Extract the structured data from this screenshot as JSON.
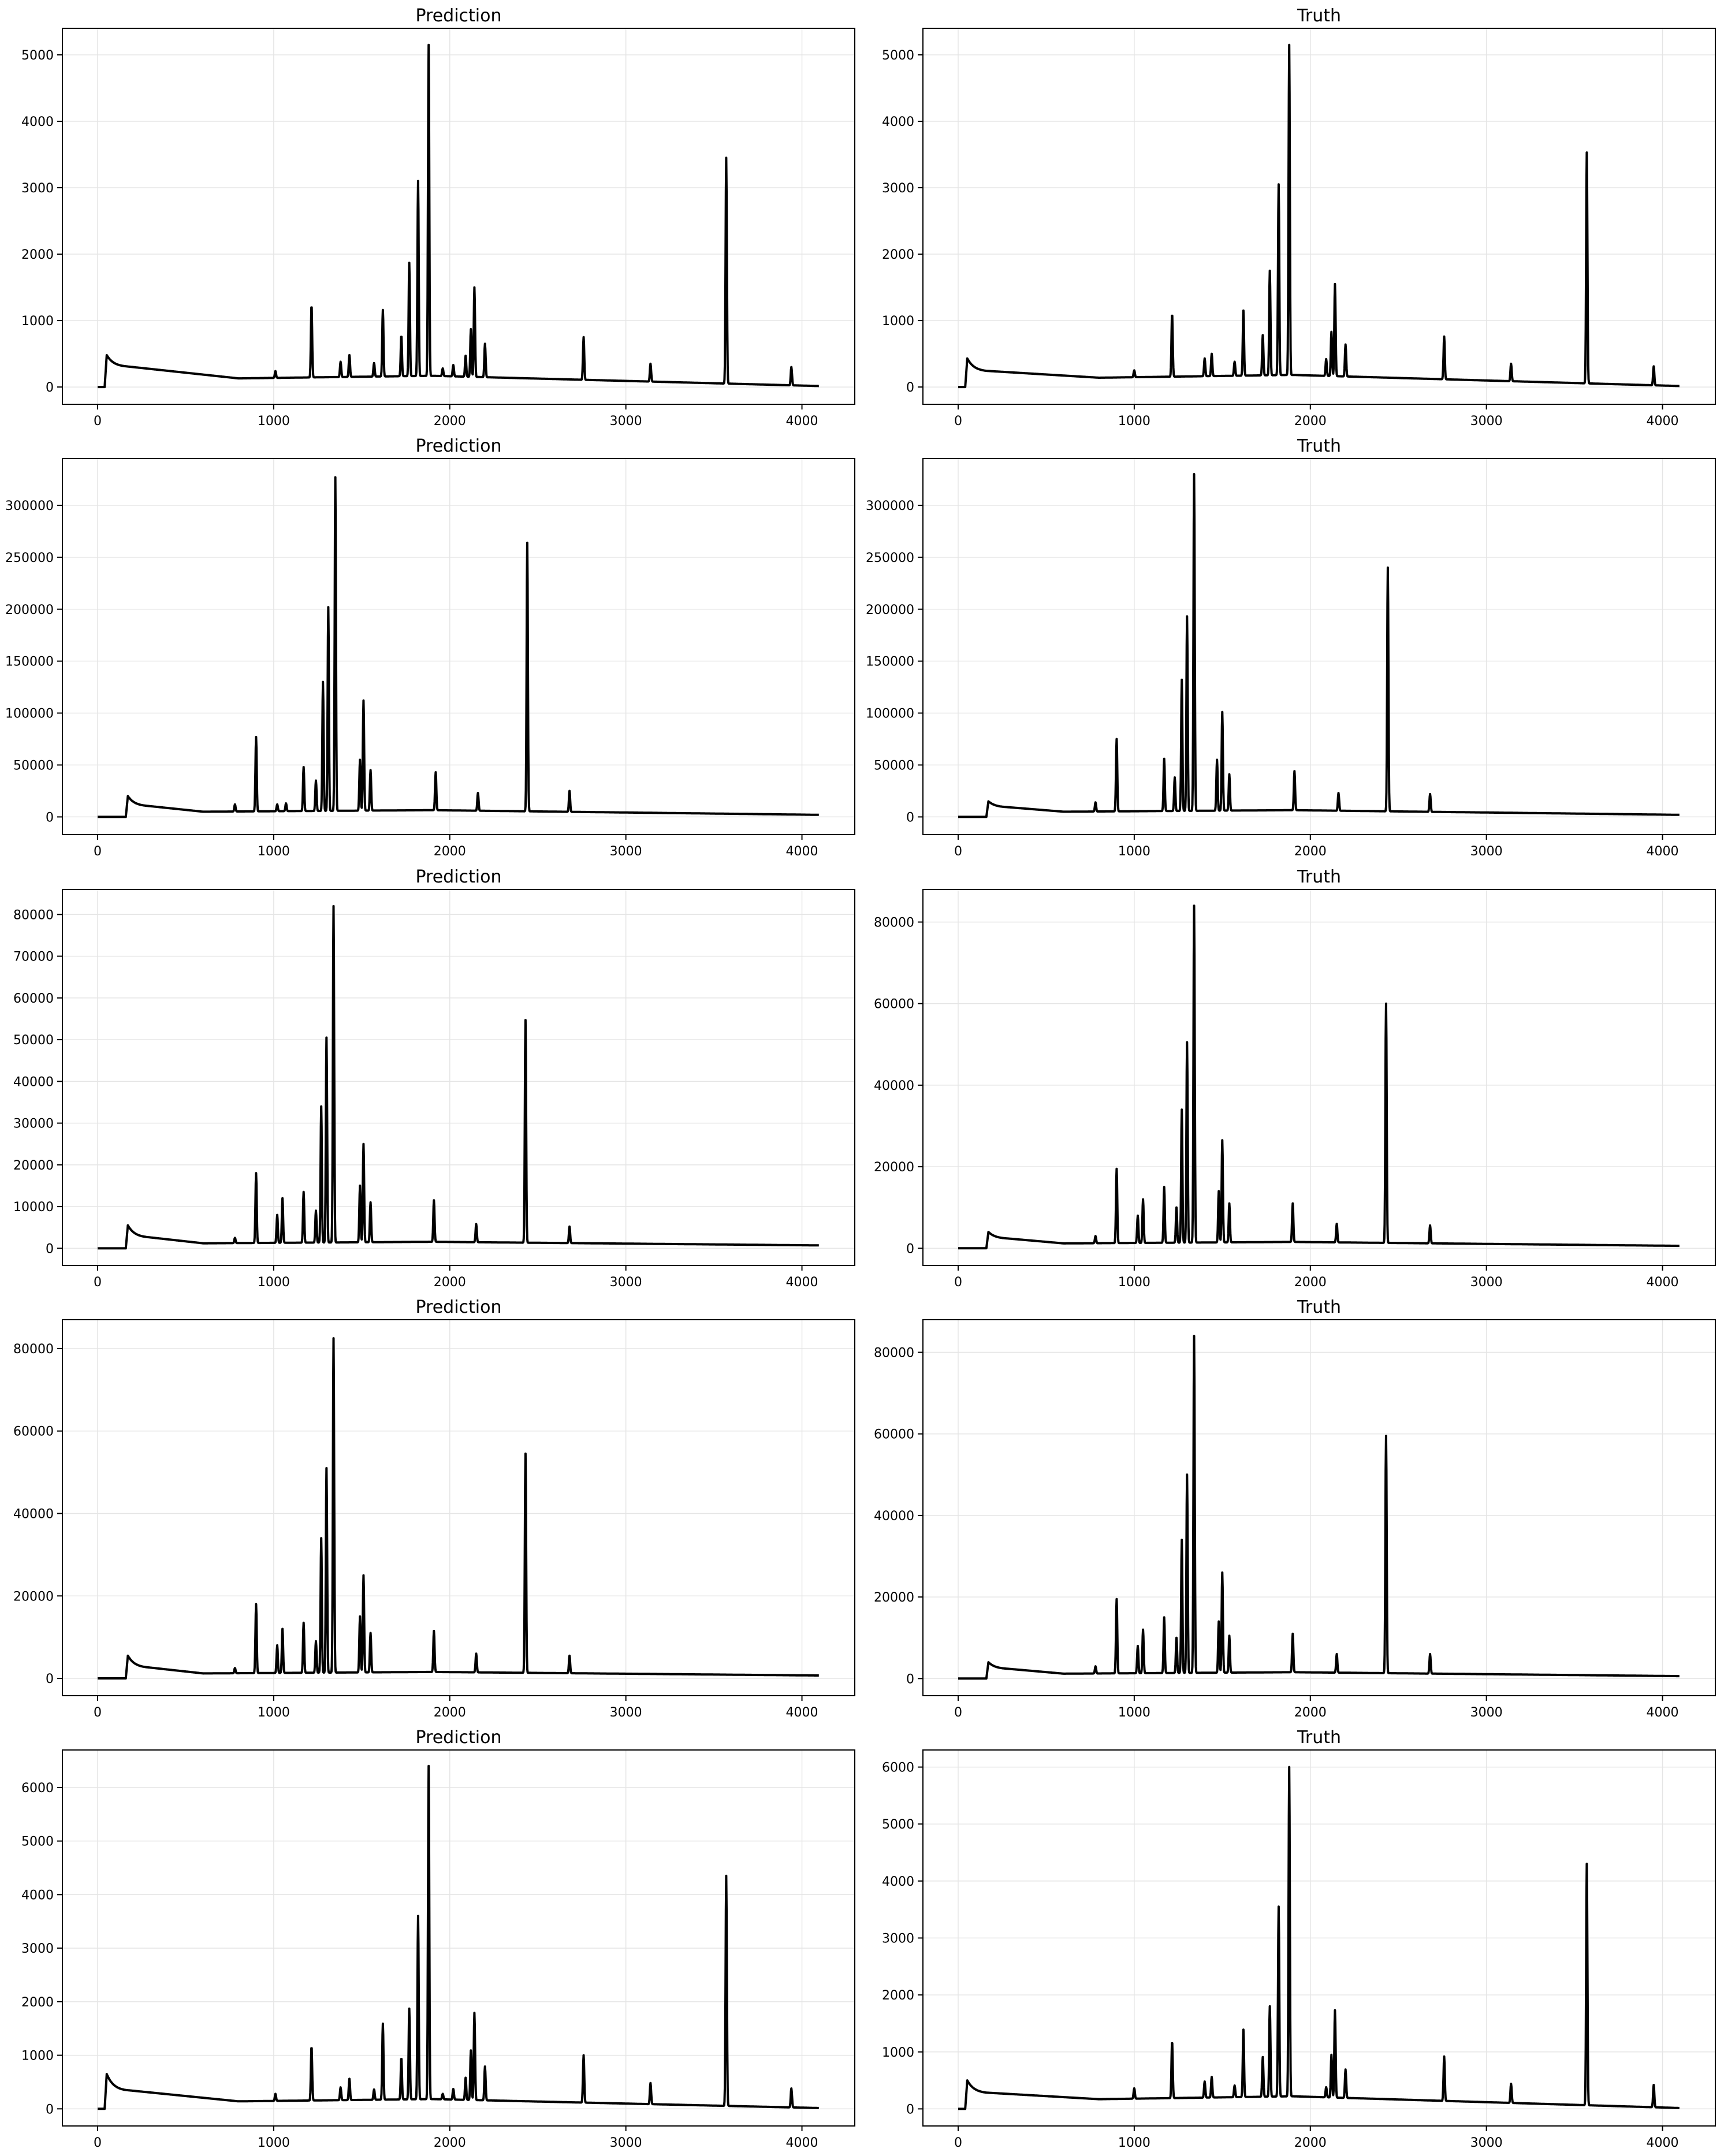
{
  "figure": {
    "layout": "5 rows x 2 columns",
    "background": "#ffffff",
    "line_color": "#000000",
    "grid_color": "#e5e5e5"
  },
  "chart_data": [
    {
      "type": "line",
      "title": "Prediction",
      "xlabel": "",
      "ylabel": "",
      "grid": true,
      "xlim": [
        -200,
        4300
      ],
      "ylim": [
        -260,
        5400
      ],
      "xticks": [
        0,
        1000,
        2000,
        3000,
        4000
      ],
      "yticks": [
        0,
        1000,
        2000,
        3000,
        4000,
        5000
      ],
      "baseline": {
        "start_x": 40,
        "end_x": 4096,
        "onset": 480,
        "plateau": 300,
        "min": 130,
        "min_x": 800,
        "tail": 15
      },
      "peaks": [
        [
          1010,
          240
        ],
        [
          1215,
          1240
        ],
        [
          1380,
          380
        ],
        [
          1430,
          480
        ],
        [
          1570,
          360
        ],
        [
          1620,
          1160
        ],
        [
          1725,
          780
        ],
        [
          1770,
          1870
        ],
        [
          1820,
          3100
        ],
        [
          1880,
          5150
        ],
        [
          1960,
          280
        ],
        [
          2020,
          330
        ],
        [
          2090,
          470
        ],
        [
          2120,
          870
        ],
        [
          2140,
          1500
        ],
        [
          2200,
          650
        ],
        [
          2760,
          750
        ],
        [
          3140,
          350
        ],
        [
          3570,
          3450
        ],
        [
          3940,
          300
        ]
      ]
    },
    {
      "type": "line",
      "title": "Truth",
      "xlabel": "",
      "ylabel": "",
      "grid": true,
      "xlim": [
        -200,
        4300
      ],
      "ylim": [
        -260,
        5400
      ],
      "xticks": [
        0,
        1000,
        2000,
        3000,
        4000
      ],
      "yticks": [
        0,
        1000,
        2000,
        3000,
        4000,
        5000
      ],
      "baseline": {
        "start_x": 40,
        "end_x": 4096,
        "onset": 430,
        "plateau": 230,
        "min": 140,
        "min_x": 800,
        "tail": 15
      },
      "peaks": [
        [
          1000,
          250
        ],
        [
          1215,
          1110
        ],
        [
          1400,
          430
        ],
        [
          1440,
          500
        ],
        [
          1570,
          380
        ],
        [
          1620,
          1150
        ],
        [
          1730,
          780
        ],
        [
          1770,
          1750
        ],
        [
          1820,
          3050
        ],
        [
          1880,
          5150
        ],
        [
          2090,
          420
        ],
        [
          2120,
          830
        ],
        [
          2140,
          1550
        ],
        [
          2200,
          640
        ],
        [
          2760,
          760
        ],
        [
          3140,
          350
        ],
        [
          3570,
          3530
        ],
        [
          3950,
          310
        ]
      ]
    },
    {
      "type": "line",
      "title": "Prediction",
      "xlabel": "",
      "ylabel": "",
      "grid": true,
      "xlim": [
        -200,
        4300
      ],
      "ylim": [
        -17000,
        345000
      ],
      "xticks": [
        0,
        1000,
        2000,
        3000,
        4000
      ],
      "yticks": [
        0,
        50000,
        100000,
        150000,
        200000,
        250000,
        300000
      ],
      "baseline": {
        "start_x": 160,
        "end_x": 4096,
        "onset": 20000,
        "plateau": 10000,
        "min": 5000,
        "min_x": 600,
        "tail": 2000
      },
      "peaks": [
        [
          780,
          12000
        ],
        [
          900,
          77000
        ],
        [
          1020,
          12000
        ],
        [
          1070,
          13000
        ],
        [
          1170,
          48000
        ],
        [
          1240,
          35000
        ],
        [
          1280,
          130000
        ],
        [
          1310,
          202000
        ],
        [
          1350,
          327000
        ],
        [
          1490,
          55000
        ],
        [
          1510,
          112000
        ],
        [
          1550,
          45000
        ],
        [
          1920,
          43000
        ],
        [
          2160,
          23000
        ],
        [
          2440,
          264000
        ],
        [
          2680,
          25000
        ]
      ]
    },
    {
      "type": "line",
      "title": "Truth",
      "xlabel": "",
      "ylabel": "",
      "grid": true,
      "xlim": [
        -200,
        4300
      ],
      "ylim": [
        -17000,
        345000
      ],
      "xticks": [
        0,
        1000,
        2000,
        3000,
        4000
      ],
      "yticks": [
        0,
        50000,
        100000,
        150000,
        200000,
        250000,
        300000
      ],
      "baseline": {
        "start_x": 160,
        "end_x": 4096,
        "onset": 15000,
        "plateau": 9000,
        "min": 5000,
        "min_x": 600,
        "tail": 2000
      },
      "peaks": [
        [
          780,
          14000
        ],
        [
          900,
          75000
        ],
        [
          1170,
          56000
        ],
        [
          1230,
          38000
        ],
        [
          1270,
          132000
        ],
        [
          1300,
          193000
        ],
        [
          1340,
          330000
        ],
        [
          1470,
          55000
        ],
        [
          1500,
          101000
        ],
        [
          1540,
          41000
        ],
        [
          1910,
          44000
        ],
        [
          2160,
          23000
        ],
        [
          2440,
          240000
        ],
        [
          2680,
          22000
        ]
      ]
    },
    {
      "type": "line",
      "title": "Prediction",
      "xlabel": "",
      "ylabel": "",
      "grid": true,
      "xlim": [
        -200,
        4300
      ],
      "ylim": [
        -4100,
        86000
      ],
      "xticks": [
        0,
        1000,
        2000,
        3000,
        4000
      ],
      "yticks": [
        0,
        10000,
        20000,
        30000,
        40000,
        50000,
        60000,
        70000,
        80000
      ],
      "baseline": {
        "start_x": 160,
        "end_x": 4096,
        "onset": 5500,
        "plateau": 2500,
        "min": 1200,
        "min_x": 600,
        "tail": 700
      },
      "peaks": [
        [
          780,
          2500
        ],
        [
          900,
          18000
        ],
        [
          1020,
          8000
        ],
        [
          1050,
          12000
        ],
        [
          1170,
          13500
        ],
        [
          1240,
          9000
        ],
        [
          1270,
          34000
        ],
        [
          1300,
          50500
        ],
        [
          1340,
          82000
        ],
        [
          1490,
          15000
        ],
        [
          1510,
          25000
        ],
        [
          1550,
          11000
        ],
        [
          1910,
          11500
        ],
        [
          2150,
          5800
        ],
        [
          2430,
          54700
        ],
        [
          2680,
          5200
        ]
      ]
    },
    {
      "type": "line",
      "title": "Truth",
      "xlabel": "",
      "ylabel": "",
      "grid": true,
      "xlim": [
        -200,
        4300
      ],
      "ylim": [
        -4200,
        88000
      ],
      "xticks": [
        0,
        1000,
        2000,
        3000,
        4000
      ],
      "yticks": [
        0,
        20000,
        40000,
        60000,
        80000
      ],
      "baseline": {
        "start_x": 160,
        "end_x": 4096,
        "onset": 4000,
        "plateau": 2300,
        "min": 1200,
        "min_x": 600,
        "tail": 600
      },
      "peaks": [
        [
          780,
          3000
        ],
        [
          900,
          19500
        ],
        [
          1020,
          8000
        ],
        [
          1050,
          12000
        ],
        [
          1170,
          15000
        ],
        [
          1240,
          10000
        ],
        [
          1270,
          34000
        ],
        [
          1300,
          50500
        ],
        [
          1340,
          84000
        ],
        [
          1480,
          14000
        ],
        [
          1500,
          26500
        ],
        [
          1540,
          11000
        ],
        [
          1900,
          11000
        ],
        [
          2150,
          6000
        ],
        [
          2430,
          60000
        ],
        [
          2680,
          5600
        ]
      ]
    },
    {
      "type": "line",
      "title": "Prediction",
      "xlabel": "",
      "ylabel": "",
      "grid": true,
      "xlim": [
        -200,
        4300
      ],
      "ylim": [
        -4200,
        87000
      ],
      "xticks": [
        0,
        1000,
        2000,
        3000,
        4000
      ],
      "yticks": [
        0,
        20000,
        40000,
        60000,
        80000
      ],
      "baseline": {
        "start_x": 160,
        "end_x": 4096,
        "onset": 5500,
        "plateau": 2500,
        "min": 1200,
        "min_x": 600,
        "tail": 700
      },
      "peaks": [
        [
          780,
          2500
        ],
        [
          900,
          18000
        ],
        [
          1020,
          8000
        ],
        [
          1050,
          12000
        ],
        [
          1170,
          13500
        ],
        [
          1240,
          9000
        ],
        [
          1270,
          34000
        ],
        [
          1300,
          51000
        ],
        [
          1340,
          82500
        ],
        [
          1490,
          15000
        ],
        [
          1510,
          25000
        ],
        [
          1550,
          11000
        ],
        [
          1910,
          11500
        ],
        [
          2150,
          6000
        ],
        [
          2430,
          54500
        ],
        [
          2680,
          5500
        ]
      ]
    },
    {
      "type": "line",
      "title": "Truth",
      "xlabel": "",
      "ylabel": "",
      "grid": true,
      "xlim": [
        -200,
        4300
      ],
      "ylim": [
        -4200,
        88000
      ],
      "xticks": [
        0,
        1000,
        2000,
        3000,
        4000
      ],
      "yticks": [
        0,
        20000,
        40000,
        60000,
        80000
      ],
      "baseline": {
        "start_x": 160,
        "end_x": 4096,
        "onset": 4000,
        "plateau": 2300,
        "min": 1200,
        "min_x": 600,
        "tail": 600
      },
      "peaks": [
        [
          780,
          3000
        ],
        [
          900,
          19500
        ],
        [
          1020,
          8000
        ],
        [
          1050,
          12000
        ],
        [
          1170,
          15000
        ],
        [
          1240,
          10000
        ],
        [
          1270,
          34000
        ],
        [
          1300,
          50000
        ],
        [
          1340,
          84000
        ],
        [
          1480,
          14000
        ],
        [
          1500,
          26000
        ],
        [
          1540,
          10500
        ],
        [
          1900,
          11000
        ],
        [
          2150,
          6000
        ],
        [
          2430,
          59500
        ],
        [
          2680,
          6000
        ]
      ]
    },
    {
      "type": "line",
      "title": "Prediction",
      "xlabel": "",
      "ylabel": "",
      "grid": true,
      "xlim": [
        -200,
        4300
      ],
      "ylim": [
        -320,
        6700
      ],
      "xticks": [
        0,
        1000,
        2000,
        3000,
        4000
      ],
      "yticks": [
        0,
        1000,
        2000,
        3000,
        4000,
        5000,
        6000
      ],
      "baseline": {
        "start_x": 40,
        "end_x": 4096,
        "onset": 650,
        "plateau": 330,
        "min": 140,
        "min_x": 800,
        "tail": 15
      },
      "peaks": [
        [
          1010,
          280
        ],
        [
          1215,
          1170
        ],
        [
          1380,
          400
        ],
        [
          1430,
          560
        ],
        [
          1570,
          360
        ],
        [
          1620,
          1590
        ],
        [
          1725,
          960
        ],
        [
          1770,
          1870
        ],
        [
          1820,
          3600
        ],
        [
          1880,
          6400
        ],
        [
          1960,
          280
        ],
        [
          2020,
          370
        ],
        [
          2090,
          580
        ],
        [
          2120,
          1090
        ],
        [
          2140,
          1790
        ],
        [
          2200,
          790
        ],
        [
          2760,
          1000
        ],
        [
          3140,
          480
        ],
        [
          3570,
          4350
        ],
        [
          3940,
          380
        ]
      ]
    },
    {
      "type": "line",
      "title": "Truth",
      "xlabel": "",
      "ylabel": "",
      "grid": true,
      "xlim": [
        -200,
        4300
      ],
      "ylim": [
        -300,
        6300
      ],
      "xticks": [
        0,
        1000,
        2000,
        3000,
        4000
      ],
      "yticks": [
        0,
        1000,
        2000,
        3000,
        4000,
        5000,
        6000
      ],
      "baseline": {
        "start_x": 40,
        "end_x": 4096,
        "onset": 500,
        "plateau": 270,
        "min": 170,
        "min_x": 800,
        "tail": 15
      },
      "peaks": [
        [
          1000,
          360
        ],
        [
          1215,
          1190
        ],
        [
          1400,
          480
        ],
        [
          1440,
          560
        ],
        [
          1570,
          410
        ],
        [
          1620,
          1390
        ],
        [
          1730,
          910
        ],
        [
          1770,
          1800
        ],
        [
          1820,
          3550
        ],
        [
          1880,
          6000
        ],
        [
          2090,
          380
        ],
        [
          2120,
          950
        ],
        [
          2140,
          1730
        ],
        [
          2200,
          690
        ],
        [
          2760,
          920
        ],
        [
          3140,
          440
        ],
        [
          3570,
          4300
        ],
        [
          3950,
          420
        ]
      ]
    }
  ]
}
